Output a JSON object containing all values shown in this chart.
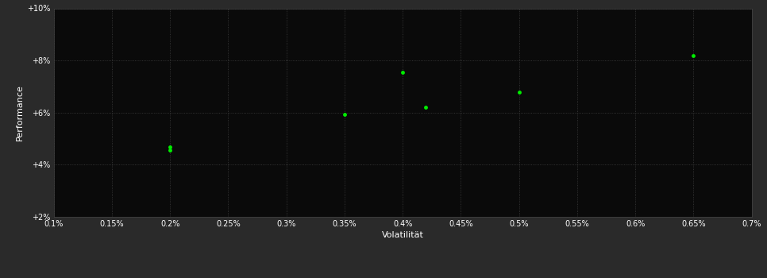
{
  "background_color": "#2a2a2a",
  "plot_bg_color": "#0a0a0a",
  "grid_color": "#555555",
  "dot_color": "#00ee00",
  "xlabel": "Volatilität",
  "ylabel": "Performance",
  "xlabel_fontsize": 8,
  "ylabel_fontsize": 8,
  "tick_label_color": "#ffffff",
  "axis_label_color": "#ffffff",
  "xlim": [
    0.001,
    0.007
  ],
  "ylim": [
    0.02,
    0.1
  ],
  "xticks": [
    0.001,
    0.0015,
    0.002,
    0.0025,
    0.003,
    0.0035,
    0.004,
    0.0045,
    0.005,
    0.0055,
    0.006,
    0.0065,
    0.007
  ],
  "xtick_labels": [
    "0.1%",
    "0.15%",
    "0.2%",
    "0.25%",
    "0.3%",
    "0.35%",
    "0.4%",
    "0.45%",
    "0.5%",
    "0.55%",
    "0.6%",
    "0.65%",
    "0.7%"
  ],
  "yticks": [
    0.02,
    0.04,
    0.06,
    0.08,
    0.1
  ],
  "ytick_labels": [
    "+2%",
    "+4%",
    "+6%",
    "+8%",
    "+10%"
  ],
  "data_points": [
    [
      0.002,
      0.0468
    ],
    [
      0.002,
      0.0455
    ],
    [
      0.0035,
      0.0592
    ],
    [
      0.004,
      0.0756
    ],
    [
      0.0042,
      0.0622
    ],
    [
      0.005,
      0.0678
    ],
    [
      0.0065,
      0.0818
    ]
  ],
  "marker_size": 3.5
}
